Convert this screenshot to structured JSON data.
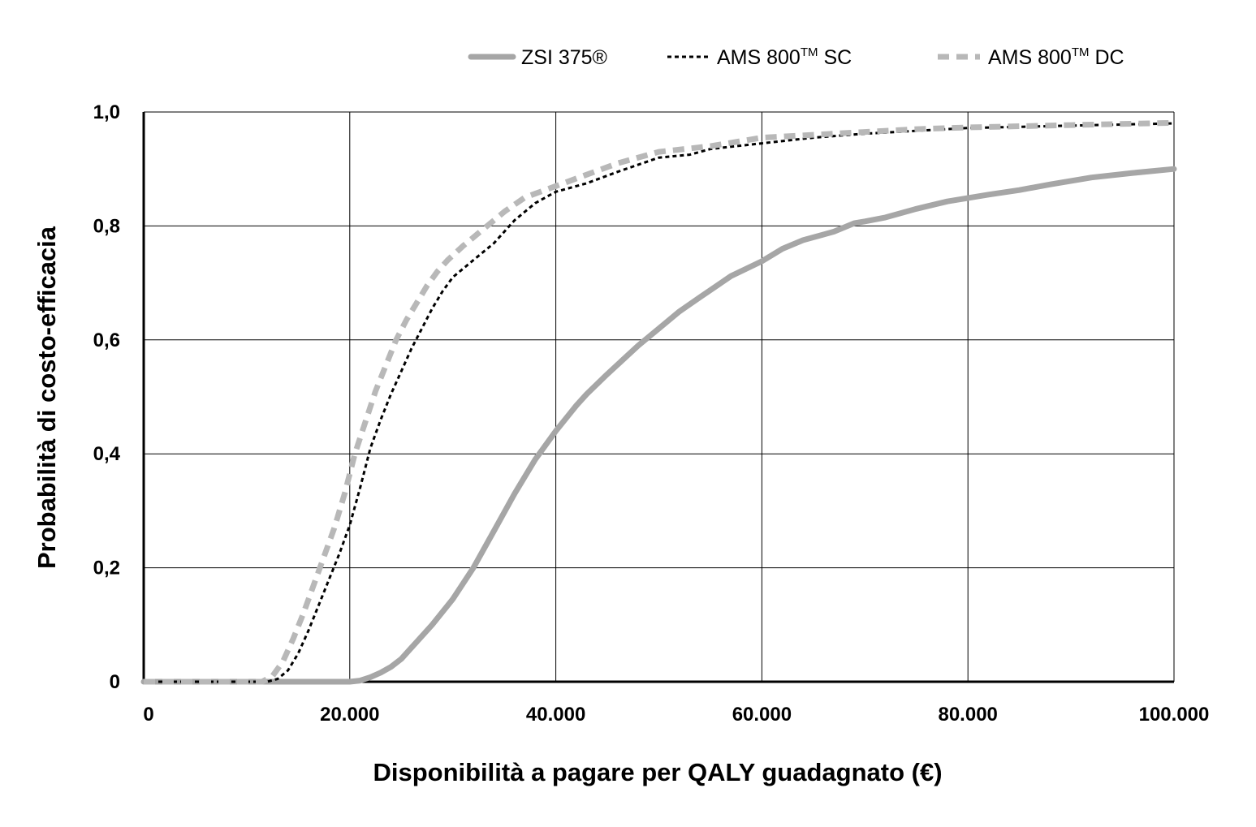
{
  "chart_data": {
    "type": "line",
    "xlabel": "Disponibilità a pagare per QALY guadagnato (€)",
    "ylabel": "Probabilità di costo-efficacia",
    "xlim": [
      0,
      100000
    ],
    "ylim": [
      0,
      1.0
    ],
    "x_ticks": [
      0,
      20000,
      40000,
      60000,
      80000,
      100000
    ],
    "x_tick_labels": [
      "0",
      "20.000",
      "40.000",
      "60.000",
      "80.000",
      "100.000"
    ],
    "y_ticks": [
      0,
      0.2,
      0.4,
      0.6,
      0.8,
      1.0
    ],
    "y_tick_labels": [
      "0",
      "0,2",
      "0,4",
      "0,6",
      "0,8",
      "1,0"
    ],
    "grid": true,
    "legend_position": "top",
    "series": [
      {
        "name": "ZSI 375®",
        "color": "#a6a6a6",
        "style": "solid",
        "x": [
          0,
          20000,
          21000,
          22000,
          23000,
          24000,
          25000,
          26000,
          28000,
          30000,
          32000,
          34000,
          36000,
          38000,
          40000,
          42000,
          43000,
          45000,
          48000,
          50000,
          52000,
          54000,
          57000,
          60000,
          62000,
          64000,
          67000,
          69000,
          70000,
          72000,
          75000,
          78000,
          82000,
          85000,
          88000,
          92000,
          96000,
          100000
        ],
        "values": [
          0,
          0,
          0.002,
          0.008,
          0.016,
          0.026,
          0.04,
          0.06,
          0.1,
          0.145,
          0.2,
          0.265,
          0.33,
          0.39,
          0.44,
          0.485,
          0.505,
          0.54,
          0.59,
          0.62,
          0.65,
          0.675,
          0.712,
          0.738,
          0.76,
          0.775,
          0.79,
          0.805,
          0.808,
          0.815,
          0.83,
          0.843,
          0.855,
          0.863,
          0.873,
          0.885,
          0.893,
          0.9
        ]
      },
      {
        "name": "AMS 800™ SC",
        "color": "#000000",
        "style": "dotted",
        "x": [
          0,
          12000,
          13000,
          14000,
          15000,
          16000,
          17000,
          18000,
          19000,
          20000,
          21000,
          22000,
          23000,
          24000,
          25000,
          26000,
          27000,
          28000,
          29000,
          30000,
          32000,
          34000,
          36000,
          38000,
          40000,
          43000,
          46000,
          50000,
          53000,
          55000,
          60000,
          65000,
          70000,
          75000,
          80000,
          90000,
          100000
        ],
        "values": [
          0,
          0,
          0.005,
          0.02,
          0.05,
          0.09,
          0.135,
          0.18,
          0.225,
          0.275,
          0.34,
          0.41,
          0.46,
          0.505,
          0.545,
          0.585,
          0.62,
          0.655,
          0.685,
          0.71,
          0.74,
          0.77,
          0.81,
          0.84,
          0.86,
          0.875,
          0.895,
          0.92,
          0.925,
          0.935,
          0.945,
          0.955,
          0.962,
          0.967,
          0.972,
          0.976,
          0.98
        ]
      },
      {
        "name": "AMS 800™ DC",
        "color": "#b8b8b8",
        "style": "dashed",
        "x": [
          0,
          11500,
          12500,
          13500,
          14500,
          15500,
          16500,
          17500,
          18500,
          19500,
          20500,
          21500,
          22500,
          23500,
          24500,
          25500,
          26500,
          27500,
          28500,
          29500,
          31000,
          33000,
          35000,
          37000,
          40000,
          43000,
          46000,
          50000,
          55000,
          60000,
          65000,
          70000,
          75000,
          80000,
          90000,
          100000
        ],
        "values": [
          0,
          0,
          0.01,
          0.035,
          0.075,
          0.12,
          0.17,
          0.22,
          0.27,
          0.33,
          0.4,
          0.455,
          0.51,
          0.555,
          0.6,
          0.635,
          0.665,
          0.695,
          0.72,
          0.74,
          0.765,
          0.795,
          0.825,
          0.85,
          0.87,
          0.89,
          0.91,
          0.93,
          0.94,
          0.955,
          0.96,
          0.965,
          0.97,
          0.973,
          0.977,
          0.981
        ]
      }
    ]
  },
  "legend": {
    "items": [
      {
        "base": "ZSI 375®",
        "sup": "",
        "suffix": ""
      },
      {
        "base": "AMS 800",
        "sup": "TM",
        "suffix": " SC"
      },
      {
        "base": "AMS 800",
        "sup": "TM",
        "suffix": " DC"
      }
    ]
  }
}
